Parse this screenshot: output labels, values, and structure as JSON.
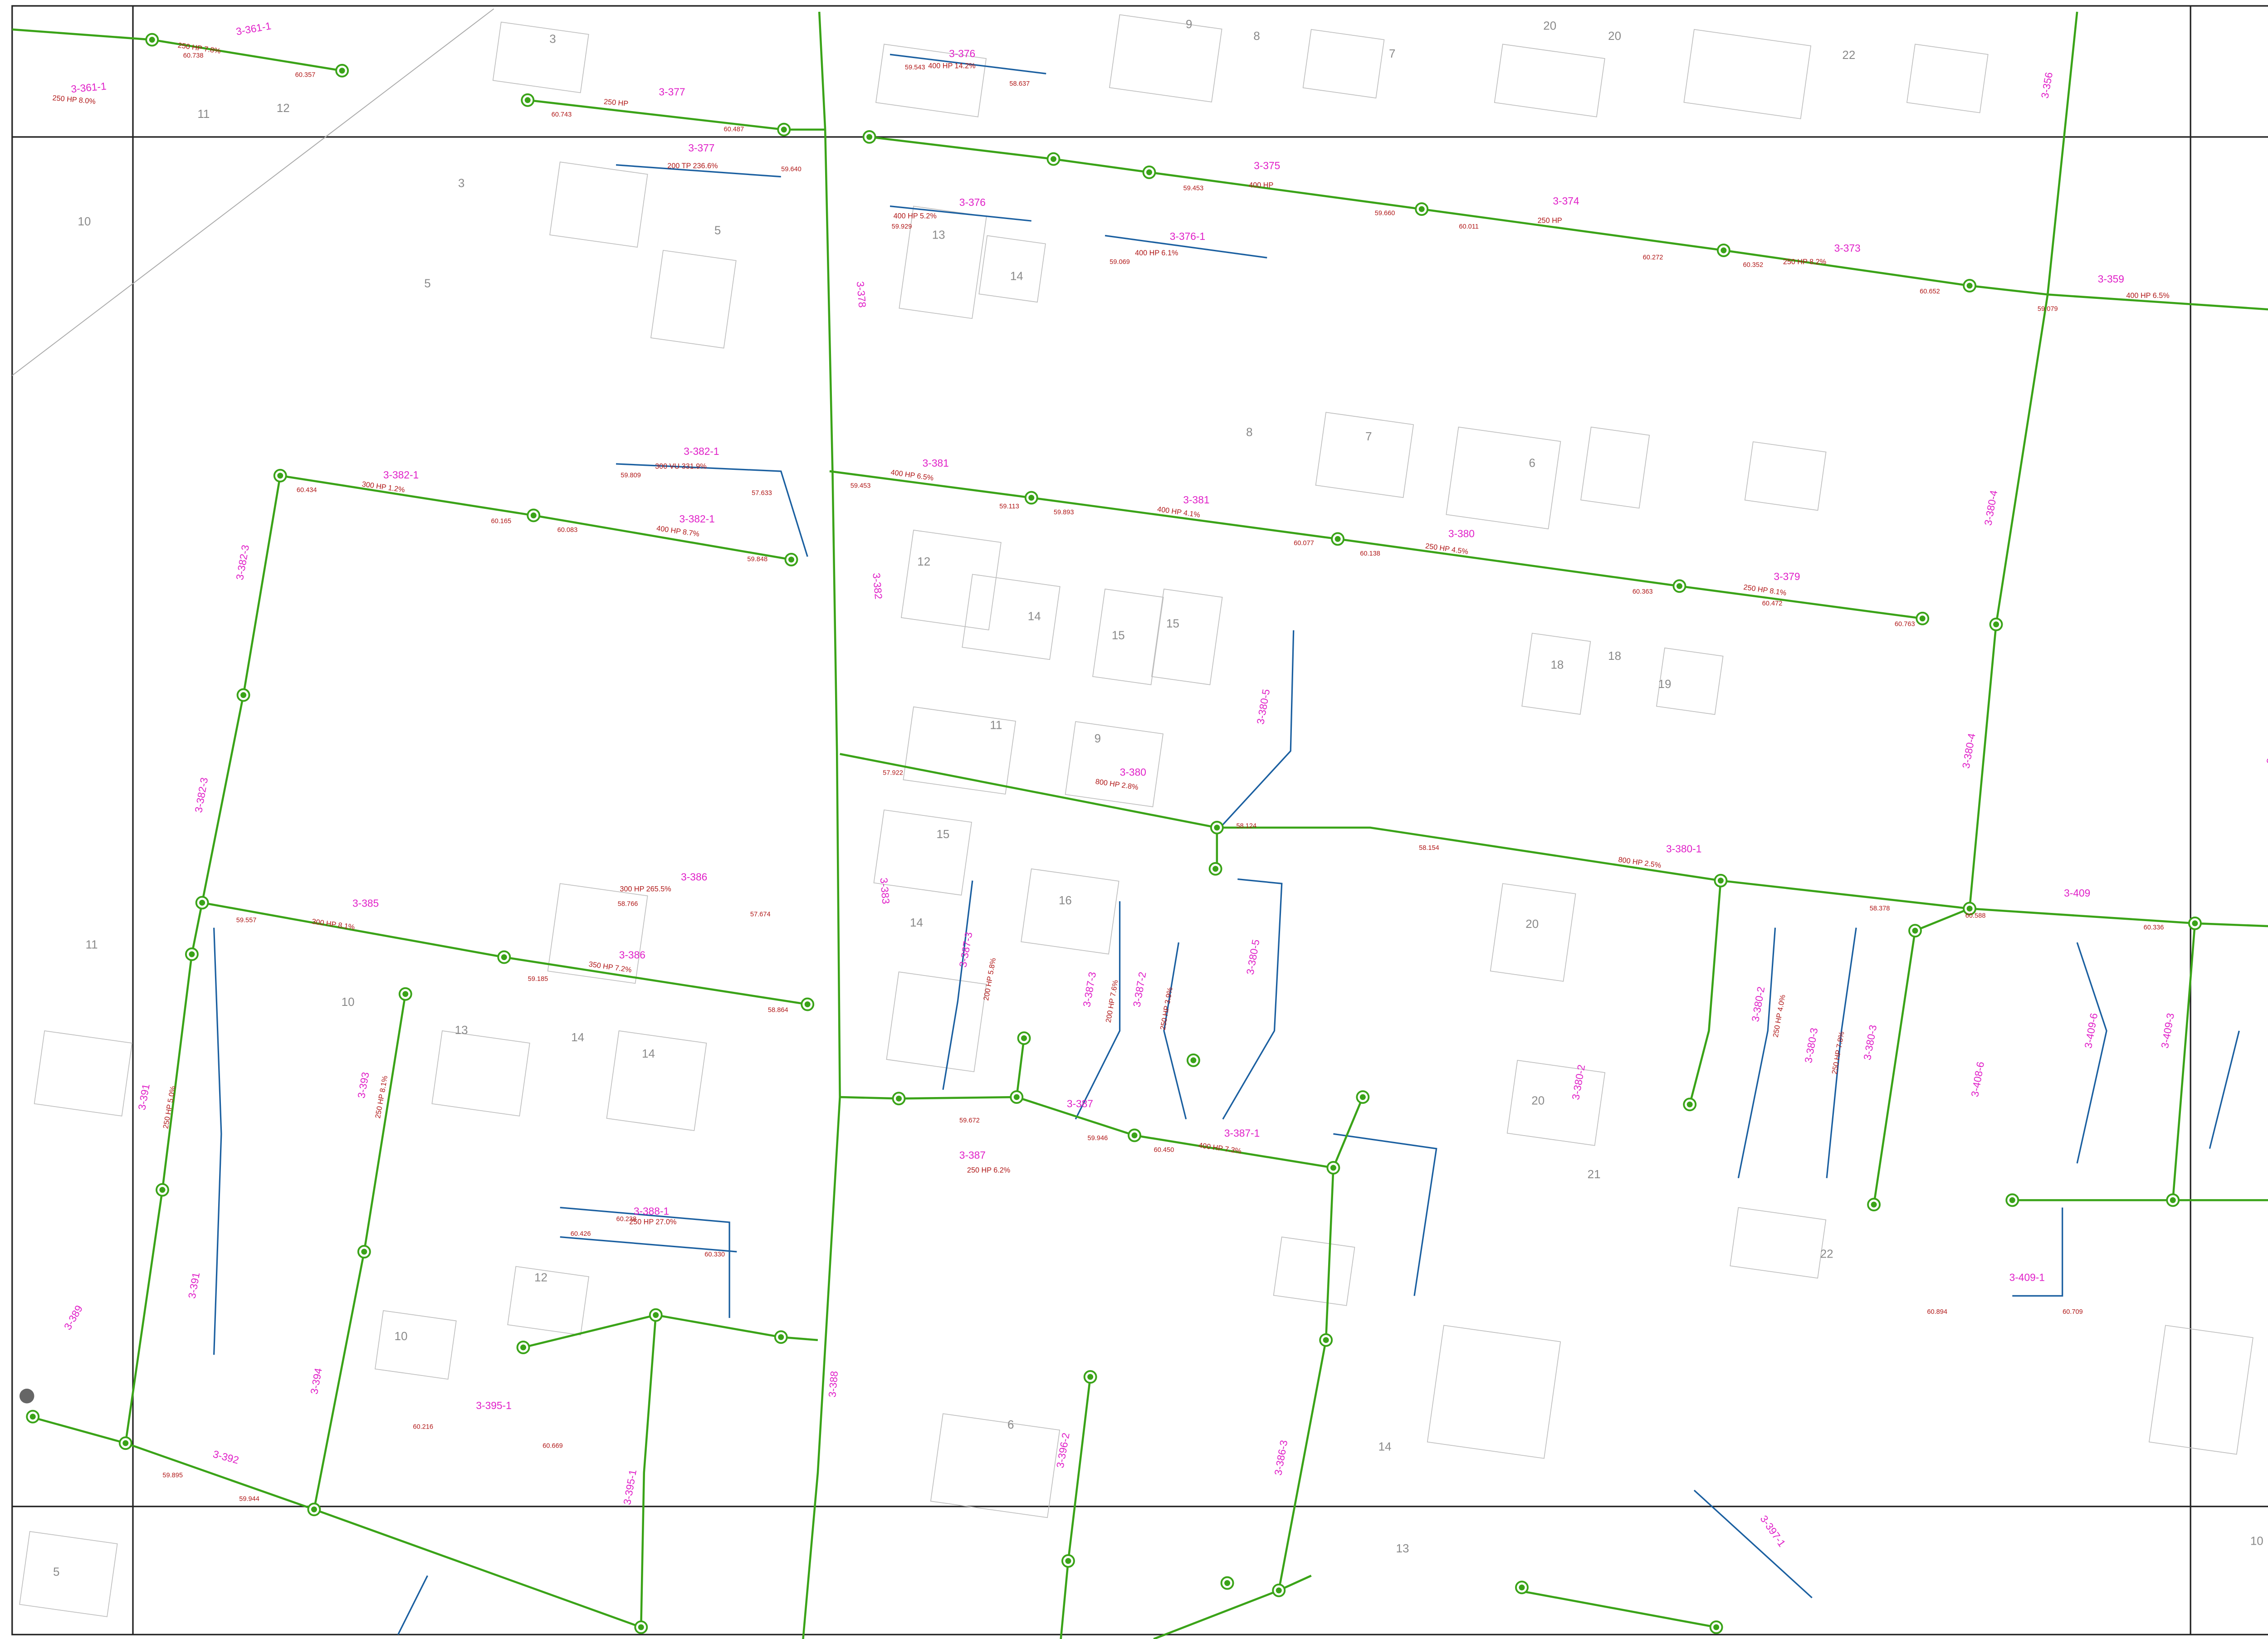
{
  "pipe_ids": [
    "3-361-1",
    "3-361-1",
    "3-377",
    "3-377",
    "3-376",
    "3-376",
    "3-376-1",
    "3-375",
    "3-374",
    "3-373",
    "3-359",
    "3-356",
    "3-378",
    "3-382-1",
    "3-382-1",
    "3-382-1",
    "3-381",
    "3-381",
    "3-380",
    "3-379",
    "3-382",
    "3-382-3",
    "3-382-3",
    "3-380",
    "3-380-5",
    "3-380-1",
    "3-380-4",
    "3-380-4",
    "3-357",
    "3-357",
    "3-385",
    "3-386",
    "3-386",
    "3-383",
    "3-387-3",
    "3-387-3",
    "3-387-2",
    "3-380-5",
    "3-380-2",
    "3-380-3",
    "3-380-3",
    "3-380-2",
    "3-409",
    "3-408-6",
    "3-409-6",
    "3-409-3",
    "3-391",
    "3-393",
    "3-388-1",
    "3-387",
    "3-387",
    "3-387-1",
    "3-391",
    "3-389",
    "3-394",
    "3-395-1",
    "3-392",
    "3-388",
    "3-386-3",
    "3-396-2",
    "3-409-1",
    "3-397-1",
    "3-395-1"
  ],
  "pipe_specs": [
    "250 HP 7.8%",
    "250 HP 8.0%",
    "250 HP",
    "400 HP 14.2%",
    "200 TP 236.6%",
    "400 HP 5.2%",
    "400 HP 6.1%",
    "400 HP",
    "250 HP",
    "250 HP 8.2%",
    "400 HP 6.5%",
    "300 HP 1.2%",
    "300 VU 331.9%",
    "400 HP 8.7%",
    "400 HP 6.5%",
    "400 HP 4.1%",
    "250 HP 4.5%",
    "250 HP 8.1%",
    "800 HP 2.8%",
    "800 HP 2.5%",
    "300 HP 8.1%",
    "300 HP 265.5%",
    "350 HP 7.2%",
    "200 HP 5.8%",
    "200 HP 7.6%",
    "250 HP 3.9%",
    "250 HP 4.0%",
    "250 HP 7.8%",
    "250 HP 5.0%",
    "250 HP 8.1%",
    "250 HP 27.0%",
    "250 HP 6.2%",
    "400 HP 7.3%"
  ],
  "elevations": [
    "60.738",
    "60.357",
    "60.743",
    "60.487",
    "59.640",
    "59.543",
    "58.637",
    "59.929",
    "59.069",
    "59.453",
    "59.660",
    "60.011",
    "60.272",
    "60.352",
    "60.652",
    "59.079",
    "60.434",
    "60.165",
    "60.083",
    "59.848",
    "59.809",
    "57.633",
    "59.453",
    "59.113",
    "59.893",
    "60.077",
    "60.138",
    "60.363",
    "60.472",
    "60.763",
    "57.922",
    "58.124",
    "58.154",
    "58.378",
    "60.588",
    "60.336",
    "59.557",
    "59.185",
    "58.864",
    "58.766",
    "57.674",
    "59.672",
    "59.946",
    "60.450",
    "60.238",
    "60.426",
    "60.330",
    "60.216",
    "60.669",
    "60.894",
    "60.709",
    "59.895",
    "59.944"
  ],
  "block_numbers": [
    "3",
    "9",
    "8",
    "20",
    "20",
    "22",
    "7",
    "11",
    "12",
    "3",
    "5",
    "5",
    "10",
    "13",
    "14",
    "7",
    "6",
    "8",
    "12",
    "14",
    "15",
    "15",
    "18",
    "18",
    "19",
    "11",
    "9",
    "15",
    "16",
    "14",
    "11",
    "10",
    "13",
    "14",
    "14",
    "20",
    "20",
    "21",
    "22",
    "12",
    "10",
    "6",
    "14",
    "13",
    "5",
    "10"
  ]
}
